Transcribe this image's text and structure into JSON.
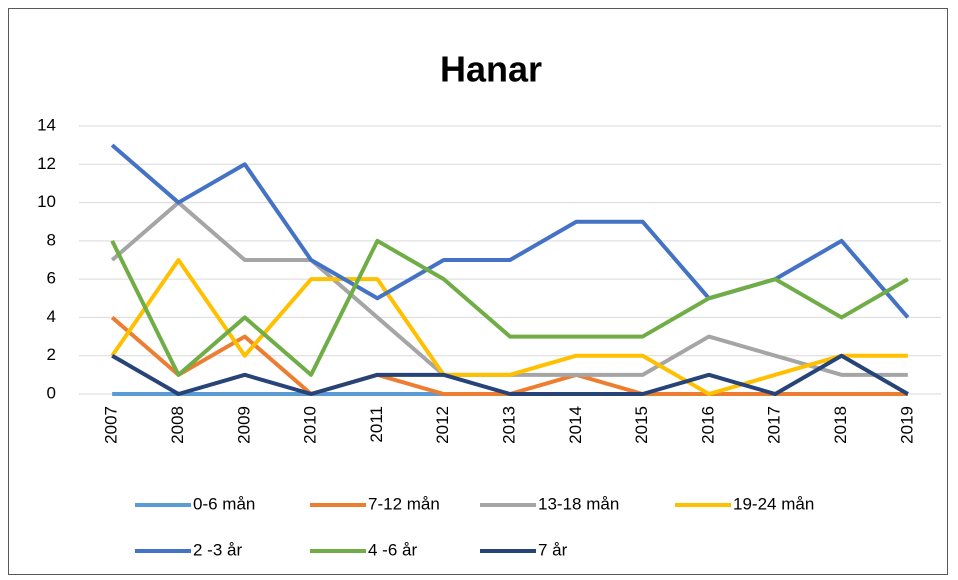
{
  "chart_data": {
    "type": "line",
    "title": "Hanar",
    "categories": [
      "2007",
      "2008",
      "2009",
      "2010",
      "2011",
      "2012",
      "2013",
      "2014",
      "2015",
      "2016",
      "2017",
      "2018",
      "2019"
    ],
    "series": [
      {
        "name": "0-6 mån",
        "color": "#5b9bd5",
        "values": [
          0,
          0,
          0,
          0,
          0,
          0,
          0,
          0,
          0,
          0,
          0,
          0,
          0
        ]
      },
      {
        "name": "7-12 mån",
        "color": "#ed7d31",
        "values": [
          4,
          1,
          3,
          0,
          1,
          0,
          0,
          1,
          0,
          0,
          0,
          0,
          0
        ]
      },
      {
        "name": "13-18 mån",
        "color": "#a5a5a5",
        "values": [
          7,
          10,
          7,
          7,
          4,
          1,
          1,
          1,
          1,
          3,
          2,
          1,
          1
        ]
      },
      {
        "name": "19-24 mån",
        "color": "#ffc000",
        "values": [
          2,
          7,
          2,
          6,
          6,
          1,
          1,
          2,
          2,
          0,
          1,
          2,
          2
        ]
      },
      {
        "name": "2 -3 år",
        "color": "#4472c4",
        "values": [
          13,
          10,
          12,
          7,
          5,
          7,
          7,
          9,
          9,
          5,
          6,
          8,
          4
        ]
      },
      {
        "name": "4 -6 år",
        "color": "#70ad47",
        "values": [
          8,
          1,
          4,
          1,
          8,
          6,
          3,
          3,
          3,
          5,
          6,
          4,
          6
        ]
      },
      {
        "name": "7 år",
        "color": "#264478",
        "values": [
          2,
          0,
          1,
          0,
          1,
          1,
          0,
          0,
          0,
          1,
          0,
          2,
          0
        ]
      }
    ],
    "ylim": [
      0,
      14
    ],
    "yticks": [
      0,
      2,
      4,
      6,
      8,
      10,
      12,
      14
    ],
    "grid": true
  }
}
